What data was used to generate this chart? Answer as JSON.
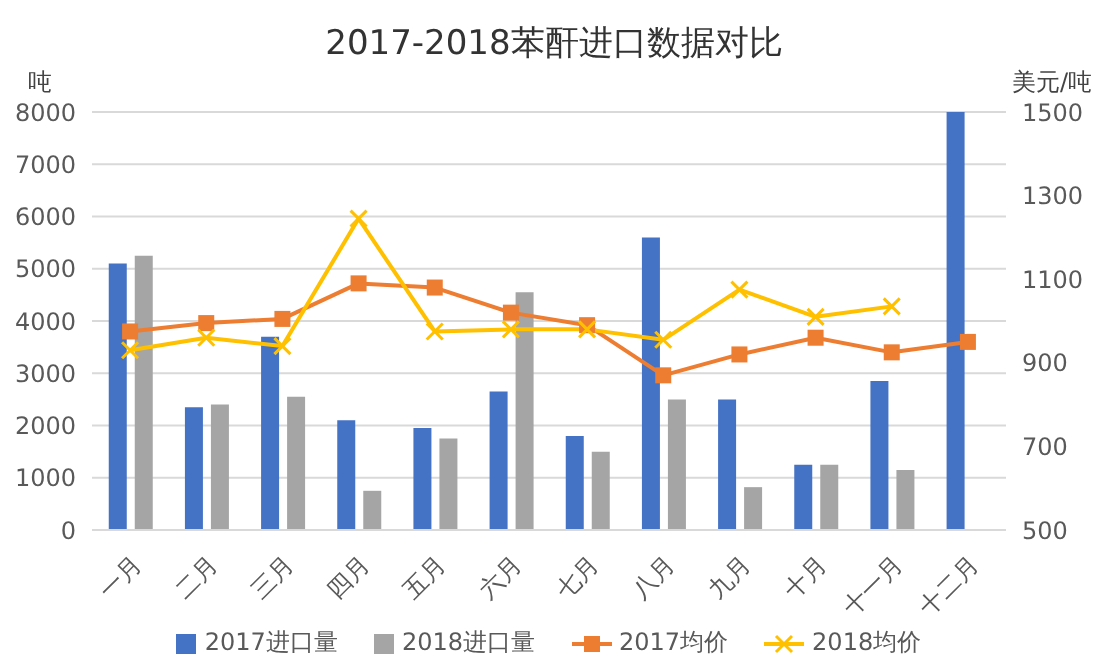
{
  "chart_data": {
    "type": "bar",
    "title": "2017-2018苯酐进口数据对比",
    "ylabel": "吨",
    "y2label": "美元/吨",
    "categories": [
      "一月",
      "二月",
      "三月",
      "四月",
      "五月",
      "六月",
      "七月",
      "八月",
      "九月",
      "十月",
      "十一月",
      "十二月"
    ],
    "series": [
      {
        "name": "2017进口量",
        "color": "#4472c4",
        "values": [
          5100,
          2350,
          3700,
          2100,
          1950,
          2650,
          1800,
          5600,
          2500,
          1250,
          2850,
          8000
        ]
      },
      {
        "name": "2018进口量",
        "color": "#a5a5a5",
        "values": [
          5250,
          2400,
          2550,
          750,
          1750,
          4550,
          1500,
          2500,
          820,
          1250,
          1150,
          null
        ]
      },
      {
        "name": "2017均价",
        "type": "line",
        "axis": "y2",
        "marker": "square",
        "color": "#ed7d31",
        "values": [
          975,
          995,
          1005,
          1090,
          1080,
          1020,
          990,
          870,
          920,
          960,
          925,
          950
        ]
      },
      {
        "name": "2018均价",
        "type": "line",
        "axis": "y2",
        "marker": "cross",
        "color": "#ffc000",
        "values": [
          930,
          960,
          940,
          1245,
          975,
          980,
          980,
          955,
          1075,
          1010,
          1035,
          null
        ]
      }
    ],
    "ylim": [
      0,
      8000
    ],
    "yticks": [
      0,
      1000,
      2000,
      3000,
      4000,
      5000,
      6000,
      7000,
      8000
    ],
    "y2lim": [
      500,
      1500
    ],
    "y2ticks": [
      500,
      700,
      900,
      1100,
      1300,
      1500
    ],
    "grid": "y",
    "legend": "bottom"
  }
}
